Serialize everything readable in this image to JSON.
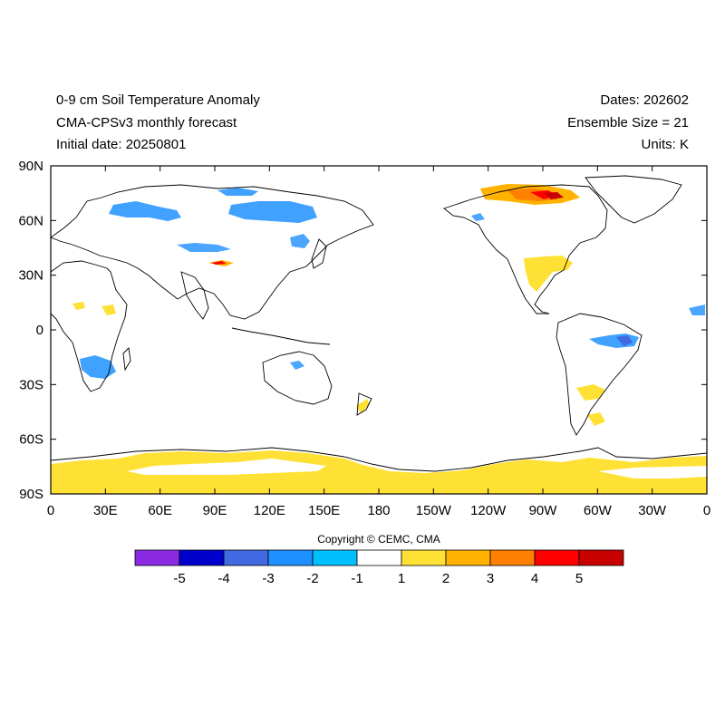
{
  "header": {
    "title": "0-9 cm Soil Temperature Anomaly",
    "model": "CMA-CPSv3 monthly forecast",
    "initial_date": "Initial date: 20250801",
    "dates": "Dates: 202602",
    "ensemble": "Ensemble Size = 21",
    "units": "Units: K"
  },
  "map": {
    "projection": "cylindrical equidistant, centered 180",
    "lat_ticks": [
      "90N",
      "60N",
      "30N",
      "0",
      "30S",
      "60S",
      "90S"
    ],
    "lon_ticks": [
      "0",
      "30E",
      "60E",
      "90E",
      "120E",
      "150E",
      "180",
      "150W",
      "120W",
      "90W",
      "60W",
      "30W",
      "0"
    ],
    "anomaly_regions": [
      {
        "region": "Antarctica coast",
        "lon": [
          0,
          360
        ],
        "lat": [
          -90,
          -74
        ],
        "class": "1 to 2"
      },
      {
        "region": "Western Russia",
        "lon": [
          25,
          60
        ],
        "lat": [
          50,
          65
        ],
        "class": "-2 to -1"
      },
      {
        "region": "Central Siberia",
        "lon": [
          95,
          140
        ],
        "lat": [
          57,
          68
        ],
        "class": "-2 to -1"
      },
      {
        "region": "Southern Africa",
        "lon": [
          15,
          35
        ],
        "lat": [
          -25,
          -18
        ],
        "class": "-2 to -1"
      },
      {
        "region": "Eastern Brazil",
        "lon": [
          300,
          322
        ],
        "lat": [
          -10,
          -5
        ],
        "class": "-2 to -1"
      },
      {
        "region": "Southern USA",
        "lon": [
          260,
          285
        ],
        "lat": [
          28,
          37
        ],
        "class": "1 to 2"
      },
      {
        "region": "Northern Canada",
        "lon": [
          240,
          290
        ],
        "lat": [
          63,
          73
        ],
        "class": "2 to 5+"
      },
      {
        "region": "Southern South America",
        "lon": [
          290,
          305
        ],
        "lat": [
          -35,
          -25
        ],
        "class": "1 to 2"
      }
    ]
  },
  "copyright": "Copyright © CEMC, CMA",
  "colorbar": {
    "colors": [
      "#8a2be2",
      "#0000cd",
      "#4169e1",
      "#1e90ff",
      "#00bfff",
      "#ffffff",
      "#ffe135",
      "#ffb300",
      "#ff7f00",
      "#ff0000",
      "#c80000"
    ],
    "labels": [
      "-5",
      "-4",
      "-3",
      "-2",
      "-1",
      "1",
      "2",
      "3",
      "4",
      "5"
    ]
  }
}
